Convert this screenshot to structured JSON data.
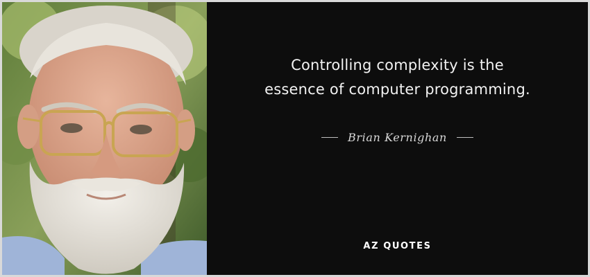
{
  "quote": {
    "lines": [
      "Controlling complexity is the",
      "essence of computer programming."
    ]
  },
  "author": {
    "name": "Brian Kernighan"
  },
  "brand": {
    "name": "AZ QUOTES"
  },
  "colors": {
    "background": "#0d0d0d",
    "text": "#f2f2f2",
    "border": "#d9d9d9"
  }
}
